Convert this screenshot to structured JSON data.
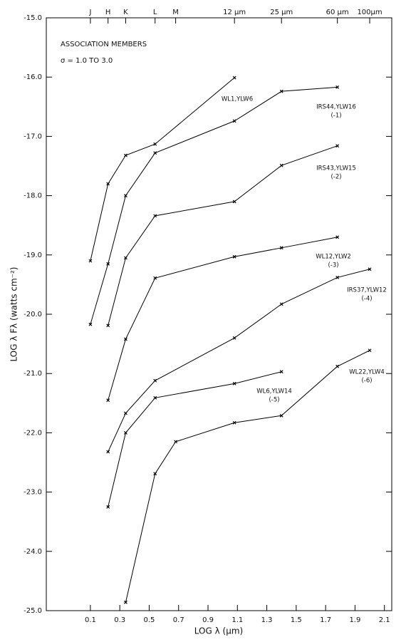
{
  "chart_data": {
    "type": "line",
    "annotations": [
      "ASSOCIATION MEMBERS",
      "σ = 1.0 TO 3.0"
    ],
    "xlabel": "LOG λ (μm)",
    "ylabel": "LOG λ Fλ (watts cm⁻²)",
    "xlim": [
      -0.2,
      2.15
    ],
    "ylim": [
      -25,
      -15
    ],
    "xticks": [
      0.1,
      0.3,
      0.5,
      0.7,
      0.9,
      1.1,
      1.3,
      1.5,
      1.7,
      1.9,
      2.1
    ],
    "yticks": [
      {
        "value": -15,
        "label": "-15.0"
      },
      {
        "value": -16,
        "label": "-16.0"
      },
      {
        "value": -17,
        "label": "-17.0"
      },
      {
        "value": -18,
        "label": "-18.0"
      },
      {
        "value": -19,
        "label": "-19.0"
      },
      {
        "value": -20,
        "label": "-20.0"
      },
      {
        "value": -21,
        "label": "-21.0"
      },
      {
        "value": -22,
        "label": "-22.0"
      },
      {
        "value": -23,
        "label": "-23.0"
      },
      {
        "value": -24,
        "label": "-24.0"
      },
      {
        "value": -25,
        "label": "-25.0"
      }
    ],
    "top_ticks": [
      {
        "value": 0.1,
        "label": "J"
      },
      {
        "value": 0.22,
        "label": "H"
      },
      {
        "value": 0.34,
        "label": "K"
      },
      {
        "value": 0.54,
        "label": "L"
      },
      {
        "value": 0.68,
        "label": "M"
      },
      {
        "value": 1.08,
        "label": "12 μm"
      },
      {
        "value": 1.4,
        "label": "25 μm"
      },
      {
        "value": 1.78,
        "label": "60 μm"
      },
      {
        "value": 2.0,
        "label": "100μm"
      }
    ],
    "series": [
      {
        "name": "WL1,YLW6",
        "color": "#000000",
        "x": [
          0.1,
          0.22,
          0.34,
          0.54,
          1.08
        ],
        "values": [
          -19.1,
          -17.8,
          -17.32,
          -17.13,
          -16.01
        ]
      },
      {
        "name": "IRS44,YLW16",
        "offset": "(-1)",
        "color": "#000000",
        "x": [
          0.1,
          0.22,
          0.34,
          0.54,
          1.08,
          1.4,
          1.78
        ],
        "values": [
          -20.17,
          -19.15,
          -18.0,
          -17.28,
          -16.74,
          -16.24,
          -16.17
        ]
      },
      {
        "name": "IRS43,YLW15",
        "offset": "(-2)",
        "color": "#000000",
        "x": [
          0.22,
          0.34,
          0.54,
          1.08,
          1.4,
          1.78
        ],
        "values": [
          -20.19,
          -19.05,
          -18.34,
          -18.1,
          -17.49,
          -17.16
        ]
      },
      {
        "name": "WL12,YLW2",
        "offset": "(-3)",
        "color": "#000000",
        "x": [
          0.22,
          0.34,
          0.54,
          1.08,
          1.4,
          1.78
        ],
        "values": [
          -21.45,
          -20.42,
          -19.39,
          -19.03,
          -18.88,
          -18.7
        ]
      },
      {
        "name": "IRS37,YLW12",
        "offset": "(-4)",
        "color": "#000000",
        "x": [
          0.22,
          0.34,
          0.54,
          1.08,
          1.4,
          1.78,
          2.0
        ],
        "values": [
          -22.32,
          -21.67,
          -21.12,
          -20.4,
          -19.83,
          -19.38,
          -19.24
        ]
      },
      {
        "name": "WL6,YLW14",
        "offset": "(-5)",
        "color": "#000000",
        "x": [
          0.22,
          0.34,
          0.54,
          1.08,
          1.4
        ],
        "values": [
          -23.25,
          -22.0,
          -21.41,
          -21.17,
          -20.97
        ]
      },
      {
        "name": "WL22,YLW4",
        "offset": "(-6)",
        "color": "#000000",
        "x": [
          0.34,
          0.54,
          0.68,
          1.08,
          1.4,
          1.78,
          2.0
        ],
        "values": [
          -24.86,
          -22.69,
          -22.15,
          -21.83,
          -21.71,
          -20.88,
          -20.61
        ]
      }
    ]
  }
}
